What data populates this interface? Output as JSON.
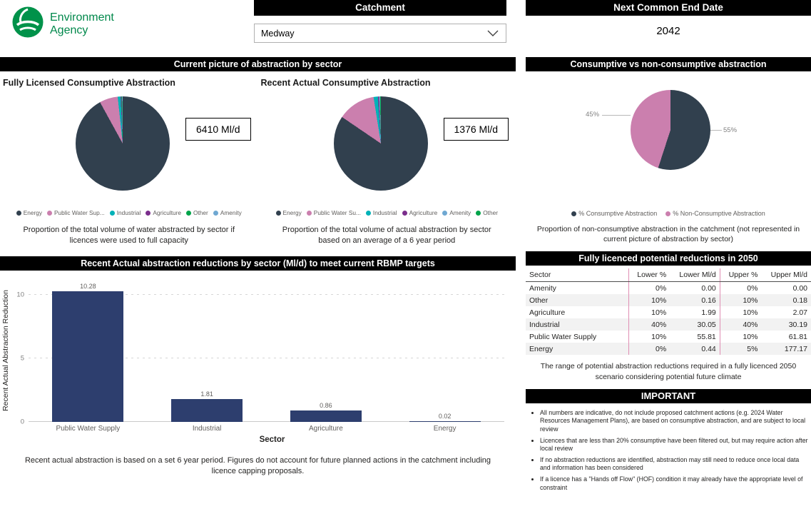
{
  "logo": {
    "line1": "Environment",
    "line2": "Agency",
    "green": "#00924a"
  },
  "filters": {
    "catchment": {
      "label": "Catchment",
      "value": "Medway"
    },
    "end_date": {
      "label": "Next Common End Date",
      "value": "2042"
    }
  },
  "left": {
    "section1_title": "Current picture of abstraction by sector",
    "section2_title": "Recent Actual abstraction reductions by sector (Ml/d) to meet current RBMP targets"
  },
  "right": {
    "pie_title": "Consumptive vs non-consumptive abstraction"
  },
  "chart_data": [
    {
      "id": "fully-licensed-pie",
      "type": "pie",
      "title": "Fully Licensed Consumptive Abstraction",
      "card_value": "6410 Ml/d",
      "legend": [
        "Energy",
        "Public Water Sup...",
        "Industrial",
        "Agriculture",
        "Other",
        "Amenity"
      ],
      "colors": [
        "#31404e",
        "#cb7fae",
        "#00b2b8",
        "#7b2e8c",
        "#00a44a",
        "#6fa8d2"
      ],
      "values_pct": [
        92.0,
        6.3,
        1.0,
        0.25,
        0.25,
        0.2
      ],
      "caption": "Proportion of the total volume of water abstracted by sector if licences were used to full capacity"
    },
    {
      "id": "recent-actual-pie",
      "type": "pie",
      "title": "Recent Actual Consumptive Abstraction",
      "card_value": "1376 Ml/d",
      "legend": [
        "Energy",
        "Public Water Su...",
        "Industrial",
        "Agriculture",
        "Amenity",
        "Other"
      ],
      "colors": [
        "#31404e",
        "#cb7fae",
        "#00b2b8",
        "#7b2e8c",
        "#6fa8d2",
        "#00a44a"
      ],
      "values_pct": [
        84.5,
        13.0,
        1.5,
        0.4,
        0.3,
        0.3
      ],
      "caption": "Proportion of the total volume of actual abstraction by sector based on an average of a 6 year period"
    },
    {
      "id": "consumptive-split-pie",
      "type": "pie",
      "legend": [
        "% Consumptive Abstraction",
        "% Non-Consumptive Abstraction"
      ],
      "colors": [
        "#31404e",
        "#cb7fae"
      ],
      "values_pct": [
        55,
        45
      ],
      "slice_labels": [
        "55%",
        "45%"
      ],
      "caption": "Proportion of non-consumptive abstraction in the catchment (not represented in current picture of abstraction by sector)"
    },
    {
      "id": "reduction-bars",
      "type": "bar",
      "categories": [
        "Public Water Supply",
        "Industrial",
        "Agriculture",
        "Energy"
      ],
      "values": [
        10.28,
        1.81,
        0.86,
        0.02
      ],
      "bar_color": "#2d3e6e",
      "xlabel": "Sector",
      "ylabel": "Recent Actual Abstraction Reduction",
      "yticks": [
        0,
        5,
        10
      ],
      "ymax": 11,
      "ylim": [
        0,
        10
      ],
      "caption": "Recent actual abstraction is based on a set 6 year period. Figures do not account for future planned actions in the catchment including licence capping proposals."
    }
  ],
  "table_section": {
    "title": "Fully licenced potential reductions in 2050",
    "columns": [
      "Sector",
      "Lower %",
      "Lower Ml/d",
      "Upper %",
      "Upper Ml/d"
    ],
    "rows": [
      [
        "Amenity",
        "0%",
        "0.00",
        "0%",
        "0.00"
      ],
      [
        "Other",
        "10%",
        "0.16",
        "10%",
        "0.18"
      ],
      [
        "Agriculture",
        "10%",
        "1.99",
        "10%",
        "2.07"
      ],
      [
        "Industrial",
        "40%",
        "30.05",
        "40%",
        "30.19"
      ],
      [
        "Public Water Supply",
        "10%",
        "55.81",
        "10%",
        "61.81"
      ],
      [
        "Energy",
        "0%",
        "0.44",
        "5%",
        "177.17"
      ]
    ],
    "caption": "The range of potential abstraction reductions required in a fully licenced 2050 scenario considering potential future climate"
  },
  "important": {
    "title": "IMPORTANT",
    "bullets": [
      "All numbers are indicative, do not include proposed catchment actions (e.g. 2024 Water Resources Management Plans), are based on consumptive abstraction, and are subject to local review",
      "Licences that are less than 20% consumptive have been filtered out, but may require action after local review",
      "If no abstraction reductions are identified, abstraction may still need to reduce once local data and information has been considered",
      "If a licence has a \"Hands off Flow\" (HOF) condition it may already have the appropriate level of constraint"
    ]
  }
}
